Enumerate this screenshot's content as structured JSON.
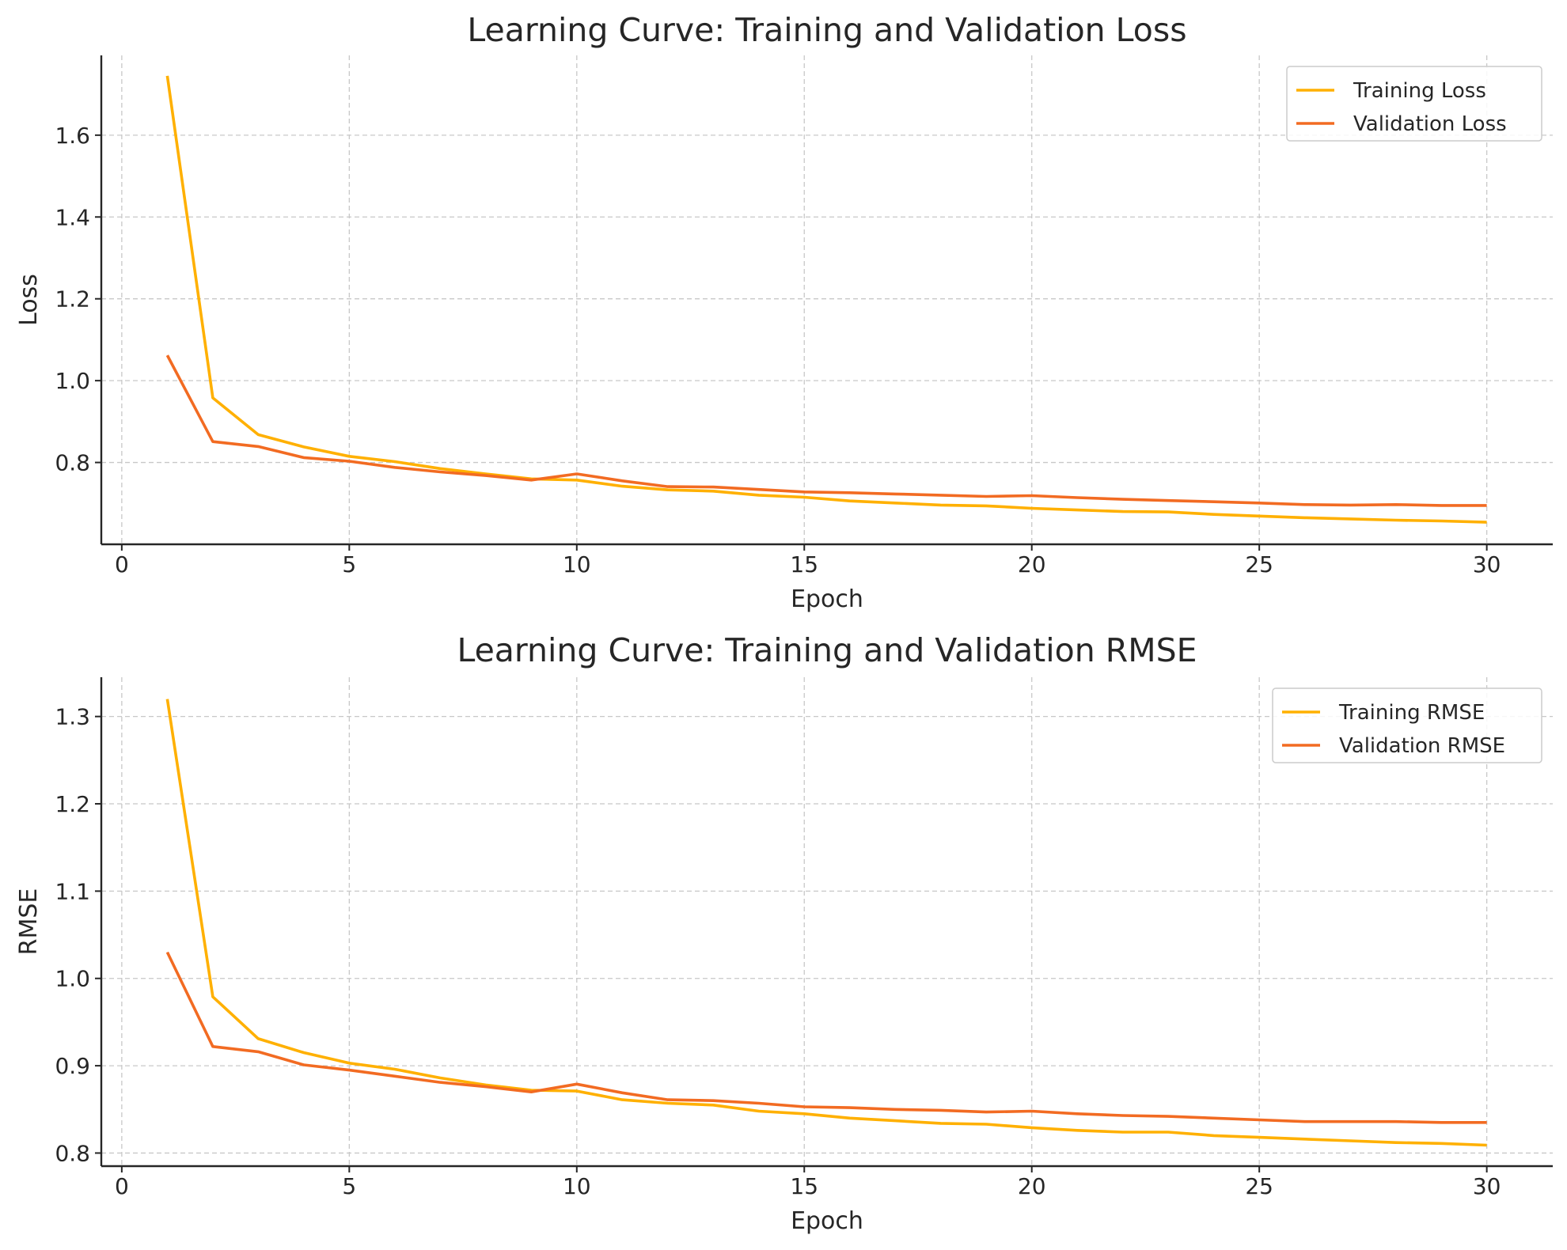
{
  "chart_data": [
    {
      "type": "line",
      "title": "Learning Curve: Training and Validation Loss",
      "xlabel": "Epoch",
      "ylabel": "Loss",
      "xlim": [
        -0.45,
        31.45
      ],
      "ylim": [
        0.6,
        1.795
      ],
      "xticks": [
        0,
        5,
        10,
        15,
        20,
        25,
        30
      ],
      "xtick_labels": [
        "0",
        "5",
        "10",
        "15",
        "20",
        "25",
        "30"
      ],
      "yticks": [
        0.8,
        1.0,
        1.2,
        1.4,
        1.6
      ],
      "ytick_labels": [
        "0.8",
        "1.0",
        "1.2",
        "1.4",
        "1.6"
      ],
      "grid": true,
      "legend": "top-right",
      "x": [
        1,
        2,
        3,
        4,
        5,
        6,
        7,
        8,
        9,
        10,
        11,
        12,
        13,
        14,
        15,
        16,
        17,
        18,
        19,
        20,
        21,
        22,
        23,
        24,
        25,
        26,
        27,
        28,
        29,
        30
      ],
      "series": [
        {
          "name": "Training Loss",
          "color": "#ffb000",
          "values": [
            1.745,
            0.958,
            0.868,
            0.838,
            0.815,
            0.802,
            0.785,
            0.772,
            0.76,
            0.757,
            0.742,
            0.733,
            0.73,
            0.72,
            0.715,
            0.706,
            0.701,
            0.696,
            0.694,
            0.688,
            0.684,
            0.68,
            0.679,
            0.673,
            0.669,
            0.665,
            0.662,
            0.659,
            0.657,
            0.654
          ]
        },
        {
          "name": "Validation Loss",
          "color": "#f26b22",
          "values": [
            1.062,
            0.851,
            0.839,
            0.812,
            0.803,
            0.788,
            0.777,
            0.768,
            0.757,
            0.772,
            0.755,
            0.741,
            0.74,
            0.734,
            0.728,
            0.726,
            0.723,
            0.72,
            0.717,
            0.719,
            0.714,
            0.71,
            0.707,
            0.704,
            0.701,
            0.697,
            0.696,
            0.697,
            0.695,
            0.695
          ]
        }
      ]
    },
    {
      "type": "line",
      "title": "Learning Curve: Training and Validation RMSE",
      "xlabel": "Epoch",
      "ylabel": "RMSE",
      "xlim": [
        -0.45,
        31.45
      ],
      "ylim": [
        0.785,
        1.345
      ],
      "xticks": [
        0,
        5,
        10,
        15,
        20,
        25,
        30
      ],
      "xtick_labels": [
        "0",
        "5",
        "10",
        "15",
        "20",
        "25",
        "30"
      ],
      "yticks": [
        0.8,
        0.9,
        1.0,
        1.1,
        1.2,
        1.3
      ],
      "ytick_labels": [
        "0.8",
        "0.9",
        "1.0",
        "1.1",
        "1.2",
        "1.3"
      ],
      "grid": true,
      "legend": "top-right",
      "x": [
        1,
        2,
        3,
        4,
        5,
        6,
        7,
        8,
        9,
        10,
        11,
        12,
        13,
        14,
        15,
        16,
        17,
        18,
        19,
        20,
        21,
        22,
        23,
        24,
        25,
        26,
        27,
        28,
        29,
        30
      ],
      "series": [
        {
          "name": "Training RMSE",
          "color": "#ffb000",
          "values": [
            1.32,
            0.979,
            0.931,
            0.915,
            0.903,
            0.896,
            0.886,
            0.878,
            0.872,
            0.871,
            0.861,
            0.857,
            0.855,
            0.848,
            0.845,
            0.84,
            0.837,
            0.834,
            0.833,
            0.829,
            0.826,
            0.824,
            0.824,
            0.82,
            0.818,
            0.816,
            0.814,
            0.812,
            0.811,
            0.809
          ]
        },
        {
          "name": "Validation RMSE",
          "color": "#f26b22",
          "values": [
            1.03,
            0.922,
            0.916,
            0.901,
            0.895,
            0.888,
            0.881,
            0.876,
            0.87,
            0.879,
            0.869,
            0.861,
            0.86,
            0.857,
            0.853,
            0.852,
            0.85,
            0.849,
            0.847,
            0.848,
            0.845,
            0.843,
            0.842,
            0.84,
            0.838,
            0.836,
            0.836,
            0.836,
            0.835,
            0.835
          ]
        }
      ]
    }
  ]
}
